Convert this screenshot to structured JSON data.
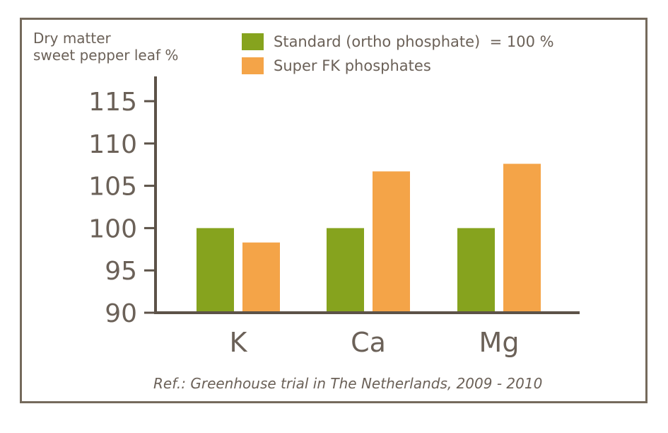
{
  "chart_data": {
    "type": "bar",
    "ylabel_lines": [
      "Dry matter",
      "sweet pepper leaf %"
    ],
    "categories": [
      "K",
      "Ca",
      "Mg"
    ],
    "series": [
      {
        "name": "Standard (ortho phosphate)  = 100 %",
        "values": [
          100,
          100,
          100
        ],
        "color": "#86a31e"
      },
      {
        "name": "Super FK phosphates",
        "values": [
          98.3,
          106.7,
          107.6
        ],
        "color": "#f4a448"
      }
    ],
    "yticks": [
      90,
      95,
      100,
      105,
      110,
      115
    ],
    "ylim": [
      90,
      115
    ],
    "grid": false,
    "legend_position": "top",
    "axis_color": "#5c5248",
    "footnote": "Ref.: Greenhouse trial in The Netherlands, 2009 - 2010"
  }
}
